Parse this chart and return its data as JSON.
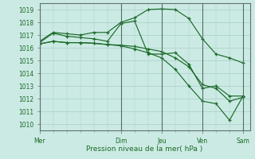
{
  "xlabel": "Pression niveau de la mer( hPa )",
  "bg_color": "#cceae4",
  "grid_color": "#a8ccc8",
  "line_color": "#1a6b28",
  "ylim": [
    1009.5,
    1019.5
  ],
  "yticks": [
    1010,
    1011,
    1012,
    1013,
    1014,
    1015,
    1016,
    1017,
    1018,
    1019
  ],
  "x_day_labels": [
    "Mer",
    "Dim",
    "Jeu",
    "Ven",
    "Sam"
  ],
  "x_day_positions": [
    0,
    12,
    18,
    24,
    30
  ],
  "xlim": [
    0,
    31
  ],
  "line1_x": [
    0,
    2,
    4,
    6,
    8,
    10,
    12,
    14,
    16,
    18,
    20,
    22,
    24,
    26,
    28,
    30
  ],
  "line1_y": [
    1016.5,
    1017.2,
    1017.1,
    1017.0,
    1017.2,
    1017.2,
    1018.0,
    1018.35,
    1019.0,
    1019.05,
    1019.0,
    1018.3,
    1016.7,
    1015.5,
    1015.2,
    1014.8
  ],
  "line2_x": [
    0,
    2,
    4,
    6,
    8,
    10,
    12,
    14,
    16,
    18,
    20,
    22,
    24,
    26,
    28,
    30
  ],
  "line2_y": [
    1016.4,
    1017.15,
    1016.9,
    1016.8,
    1016.7,
    1016.5,
    1017.9,
    1018.1,
    1015.5,
    1015.5,
    1015.6,
    1014.7,
    1012.8,
    1013.0,
    1012.2,
    1012.2
  ],
  "line3_x": [
    0,
    2,
    4,
    6,
    8,
    10,
    12,
    14,
    16,
    18,
    20,
    22,
    24,
    26,
    28,
    30
  ],
  "line3_y": [
    1016.3,
    1016.5,
    1016.4,
    1016.4,
    1016.35,
    1016.25,
    1016.2,
    1016.1,
    1015.9,
    1015.7,
    1015.2,
    1014.5,
    1013.1,
    1012.8,
    1011.8,
    1012.1
  ],
  "line4_x": [
    0,
    2,
    4,
    6,
    8,
    10,
    12,
    14,
    16,
    18,
    20,
    22,
    24,
    26,
    28,
    30
  ],
  "line4_y": [
    1016.3,
    1016.5,
    1016.4,
    1016.4,
    1016.35,
    1016.25,
    1016.15,
    1015.9,
    1015.6,
    1015.2,
    1014.3,
    1013.0,
    1011.8,
    1011.6,
    1010.3,
    1012.2
  ]
}
